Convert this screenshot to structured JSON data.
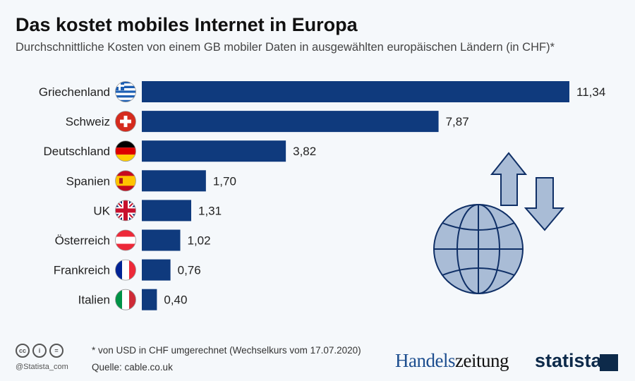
{
  "header": {
    "title": "Das kostet mobiles Internet in Europa",
    "subtitle": "Durchschnittliche Kosten von einem GB mobiler Daten in ausgewählten europäischen Ländern (in CHF)*"
  },
  "chart_data": {
    "type": "bar",
    "orientation": "horizontal",
    "categories": [
      "Griechenland",
      "Schweiz",
      "Deutschland",
      "Spanien",
      "UK",
      "Österreich",
      "Frankreich",
      "Italien"
    ],
    "values": [
      11.34,
      7.87,
      3.82,
      1.7,
      1.31,
      1.02,
      0.76,
      0.4
    ],
    "value_labels": [
      "11,34",
      "7,87",
      "3,82",
      "1,70",
      "1,31",
      "1,02",
      "0,76",
      "0,40"
    ],
    "bar_color": "#0f3a7d",
    "grid": false
  },
  "flags": [
    "greece-flag-icon",
    "switzerland-flag-icon",
    "germany-flag-icon",
    "spain-flag-icon",
    "uk-flag-icon",
    "austria-flag-icon",
    "france-flag-icon",
    "italy-flag-icon"
  ],
  "illustration": "globe-with-up-down-arrows-icon",
  "footer": {
    "note": "* von USD in CHF umgerechnet (Wechselkurs vom 17.07.2020)",
    "source": "Quelle: cable.co.uk",
    "handle": "@Statista_com",
    "brand1a": "Handels",
    "brand1b": "zeitung",
    "brand2": "statista"
  }
}
